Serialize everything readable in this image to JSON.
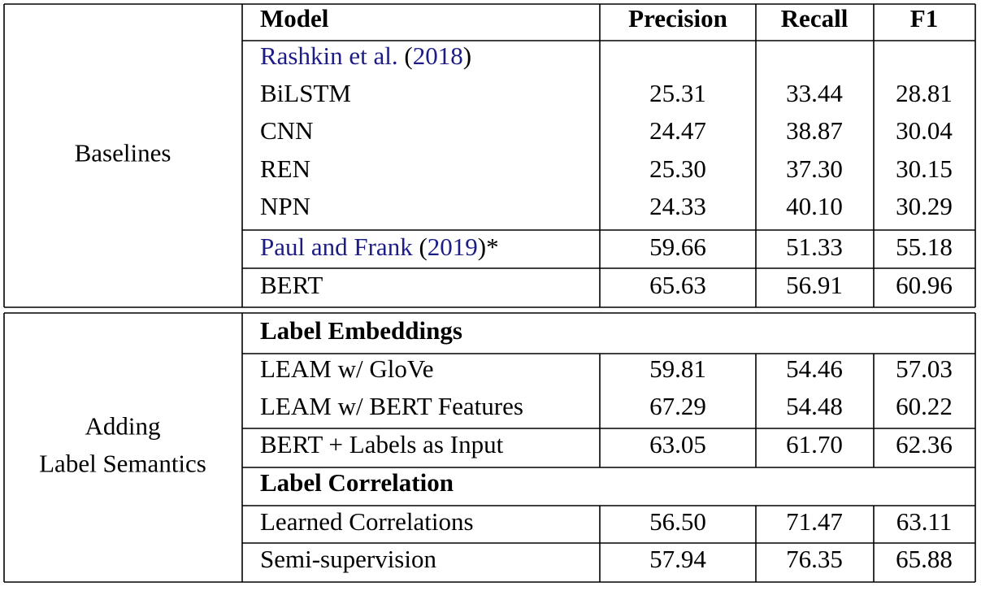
{
  "table": {
    "header": [
      "Model",
      "Precision",
      "Recall",
      "F1"
    ],
    "groups": [
      {
        "label": [
          "Baselines"
        ],
        "rows": [
          {
            "model": [
              "Rashkin et al.",
              " (",
              "2018",
              ")"
            ]
          },
          {
            "model": "BiLSTM",
            "values": [
              "25.31",
              "33.44",
              "28.81"
            ]
          },
          {
            "model": "CNN",
            "values": [
              "24.47",
              "38.87",
              "30.04"
            ]
          },
          {
            "model": "REN",
            "values": [
              "25.30",
              "37.30",
              "30.15"
            ]
          },
          {
            "model": "NPN",
            "values": [
              "24.33",
              "40.10",
              "30.29"
            ]
          },
          {
            "model": [
              "Paul and Frank",
              " (",
              "2019",
              ")*"
            ],
            "values": [
              "59.66",
              "51.33",
              "55.18"
            ]
          },
          {
            "model": "BERT",
            "values": [
              "65.63",
              "56.91",
              "60.96"
            ]
          }
        ]
      },
      {
        "label": [
          "Adding",
          "Label Semantics"
        ],
        "rows": [
          {
            "section": "Label Embeddings"
          },
          {
            "model": "LEAM w/ GloVe",
            "values": [
              "59.81",
              "54.46",
              "57.03"
            ]
          },
          {
            "model": "LEAM w/ BERT Features",
            "values": [
              "67.29",
              "54.48",
              "60.22"
            ]
          },
          {
            "model": "BERT + Labels as Input",
            "values": [
              "63.05",
              "61.70",
              "62.36"
            ]
          },
          {
            "section": "Label Correlation"
          },
          {
            "model": "Learned Correlations",
            "values": [
              "56.50",
              "71.47",
              "63.11"
            ]
          },
          {
            "model": "Semi-supervision",
            "values": [
              "57.94",
              "76.35",
              "65.88"
            ]
          }
        ]
      }
    ]
  }
}
